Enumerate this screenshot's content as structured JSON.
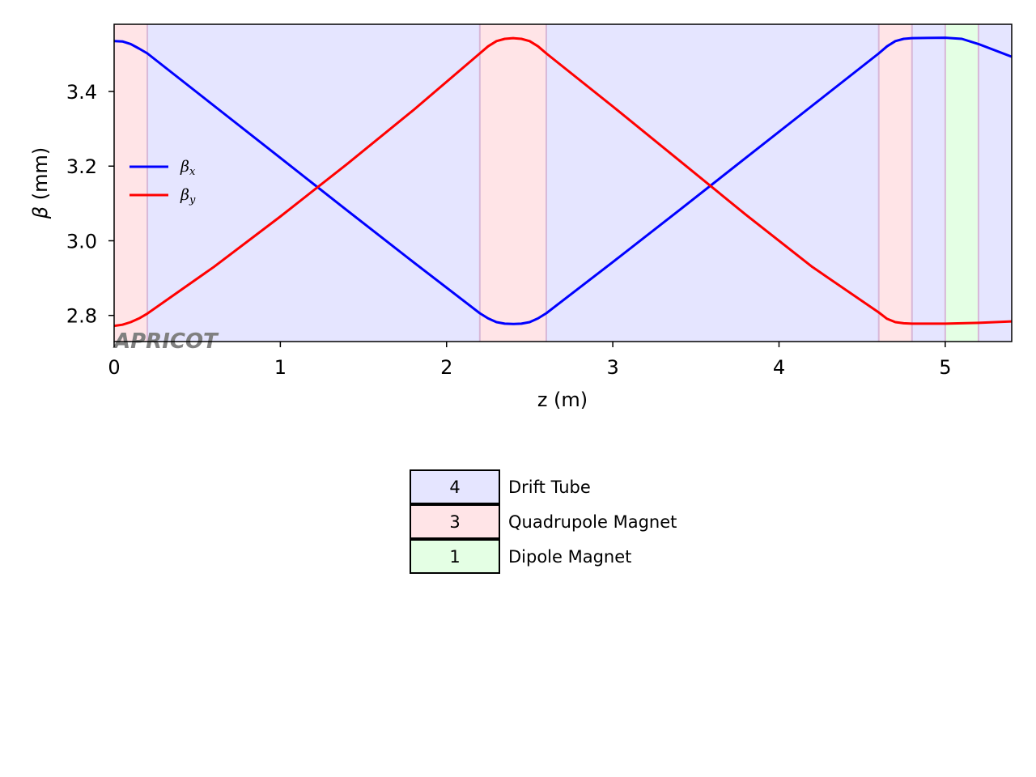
{
  "chart_data": {
    "type": "line",
    "xlabel": "z (m)",
    "ylabel_symbol": "β",
    "ylabel_unit": " (mm)",
    "xlim": [
      0,
      5.4
    ],
    "ylim": [
      2.73,
      3.58
    ],
    "xticks": [
      0,
      1,
      2,
      3,
      4,
      5
    ],
    "yticks": [
      2.8,
      3.0,
      3.2,
      3.4
    ],
    "ytick_labels": [
      "2.8",
      "3.0",
      "3.2",
      "3.4"
    ],
    "grid": false,
    "legend_position": "center-left",
    "watermark": "APRICOT",
    "regions": [
      {
        "type": "Quadrupole Magnet",
        "start": 0.0,
        "end": 0.2
      },
      {
        "type": "Drift Tube",
        "start": 0.2,
        "end": 2.2
      },
      {
        "type": "Quadrupole Magnet",
        "start": 2.2,
        "end": 2.6
      },
      {
        "type": "Drift Tube",
        "start": 2.6,
        "end": 4.6
      },
      {
        "type": "Quadrupole Magnet",
        "start": 4.6,
        "end": 4.8
      },
      {
        "type": "Drift Tube",
        "start": 4.8,
        "end": 5.0
      },
      {
        "type": "Dipole Magnet",
        "start": 5.0,
        "end": 5.2
      },
      {
        "type": "Drift Tube",
        "start": 5.2,
        "end": 5.4
      }
    ],
    "region_colors": {
      "Drift Tube": "#e5e5ff",
      "Quadrupole Magnet": "#ffe4e7",
      "Dipole Magnet": "#e4ffe4"
    },
    "boundary_color": "#d8b8d8",
    "series": [
      {
        "name": "β",
        "subscript": "x",
        "color": "#0000ff",
        "x": [
          0,
          0.05,
          0.1,
          0.15,
          0.2,
          0.6,
          1.0,
          1.4,
          1.8,
          2.2,
          2.25,
          2.3,
          2.35,
          2.4,
          2.45,
          2.5,
          2.55,
          2.6,
          3.0,
          3.4,
          3.8,
          4.2,
          4.6,
          4.65,
          4.7,
          4.75,
          4.8,
          5.0,
          5.1,
          5.2,
          5.4
        ],
        "y": [
          3.535,
          3.534,
          3.527,
          3.515,
          3.502,
          3.362,
          3.222,
          3.082,
          2.943,
          2.806,
          2.792,
          2.782,
          2.778,
          2.777,
          2.778,
          2.782,
          2.792,
          2.806,
          2.943,
          3.082,
          3.222,
          3.362,
          3.502,
          3.521,
          3.535,
          3.541,
          3.543,
          3.544,
          3.541,
          3.527,
          3.493
        ]
      },
      {
        "name": "β",
        "subscript": "y",
        "color": "#ff0000",
        "x": [
          0,
          0.05,
          0.1,
          0.15,
          0.2,
          0.6,
          1.0,
          1.4,
          1.8,
          2.2,
          2.25,
          2.3,
          2.35,
          2.4,
          2.45,
          2.5,
          2.55,
          2.6,
          3.0,
          3.4,
          3.8,
          4.2,
          4.6,
          4.65,
          4.7,
          4.75,
          4.8,
          5.0,
          5.2,
          5.4
        ],
        "y": [
          2.772,
          2.775,
          2.782,
          2.792,
          2.805,
          2.93,
          3.065,
          3.205,
          3.35,
          3.502,
          3.521,
          3.535,
          3.541,
          3.543,
          3.541,
          3.535,
          3.521,
          3.502,
          3.36,
          3.215,
          3.07,
          2.93,
          2.808,
          2.791,
          2.782,
          2.779,
          2.778,
          2.778,
          2.78,
          2.784
        ]
      }
    ]
  },
  "element_table": [
    {
      "count": "4",
      "label": "Drift Tube",
      "color": "#e5e5ff"
    },
    {
      "count": "3",
      "label": "Quadrupole Magnet",
      "color": "#ffe4e7"
    },
    {
      "count": "1",
      "label": "Dipole Magnet",
      "color": "#e4ffe4"
    }
  ]
}
